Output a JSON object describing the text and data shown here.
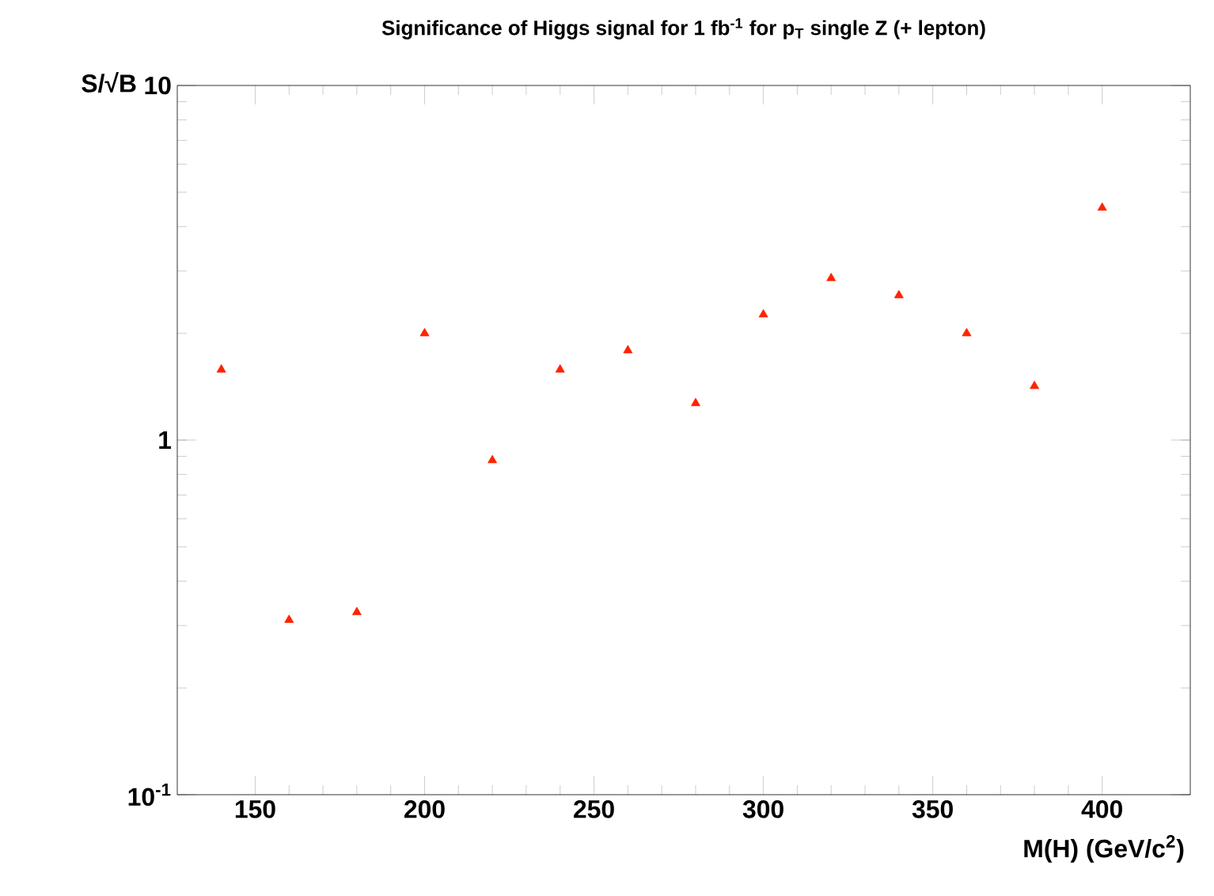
{
  "chart_data": {
    "type": "scatter",
    "title": "Significance of Higgs signal for 1 fb$^{-1}$ for p$_{T}$ single Z (+ lepton)",
    "xlabel": "M(H) (GeV/c$^{2}$)",
    "ylabel": "S/√B",
    "x": [
      140,
      160,
      180,
      200,
      220,
      240,
      260,
      280,
      300,
      320,
      340,
      360,
      380,
      400
    ],
    "series": [
      {
        "color": "#ff2200",
        "values": [
          1.58,
          0.311,
          0.327,
          2.0,
          0.877,
          1.58,
          1.79,
          1.27,
          2.26,
          2.86,
          2.56,
          2.0,
          1.42,
          4.52
        ]
      }
    ],
    "xlim": [
      127,
      426
    ],
    "xticks": [
      150,
      200,
      250,
      300,
      350,
      400
    ],
    "ylim": [
      0.1,
      10
    ],
    "yticks": [
      {
        "value": 0.1,
        "label": "10$^{-1}$"
      },
      1,
      10
    ],
    "log": "y",
    "marker": "triangle",
    "grid": false
  }
}
